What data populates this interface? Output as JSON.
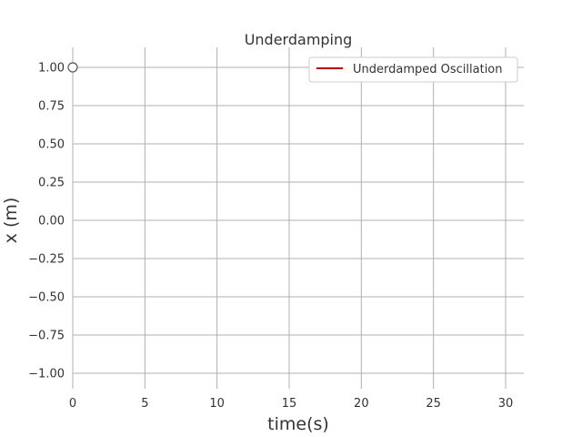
{
  "chart_data": {
    "type": "line",
    "title": "Underdamping",
    "xlabel": "time(s)",
    "ylabel": "x (m)",
    "xlim": [
      0,
      31.5
    ],
    "ylim": [
      -1.1,
      1.1
    ],
    "x_ticks": [
      0,
      5,
      10,
      15,
      20,
      25,
      30
    ],
    "x_tick_labels": [
      "0",
      "5",
      "10",
      "15",
      "20",
      "25",
      "30"
    ],
    "y_ticks": [
      1.0,
      0.75,
      0.5,
      0.25,
      0.0,
      -0.25,
      -0.5,
      -0.75,
      -1.0
    ],
    "y_tick_labels": [
      "1.00",
      "0.75",
      "0.50",
      "0.25",
      "0.00",
      "−0.25",
      "−0.50",
      "−0.75",
      "−1.00"
    ],
    "grid": true,
    "legend_position": "top-right",
    "series": [
      {
        "name": "Underdamped Oscillation",
        "color": "#e00000",
        "x": [],
        "y": []
      }
    ],
    "markers": [
      {
        "x": 0,
        "y": 1.0,
        "style": "hollow-circle",
        "color": "#555555"
      }
    ]
  }
}
